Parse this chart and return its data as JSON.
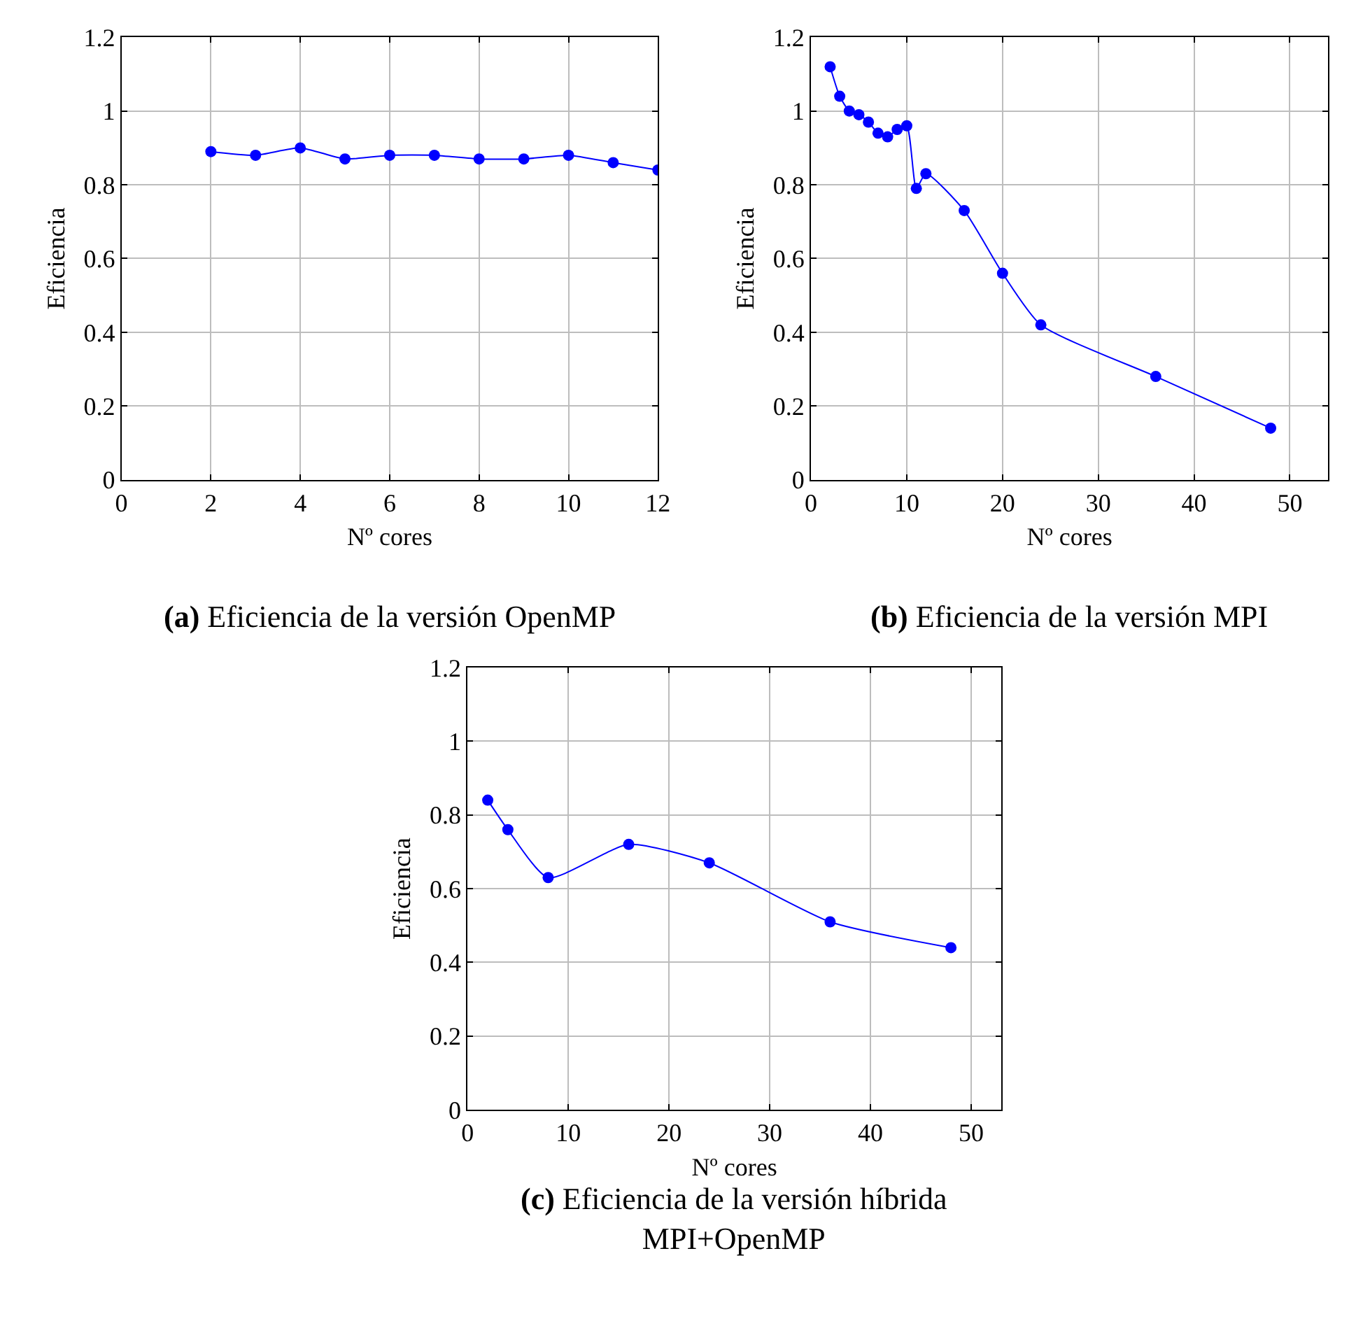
{
  "chart_data": [
    {
      "type": "line",
      "xlabel": "Nº cores",
      "ylabel": "Eficiencia",
      "annotations": [
        "(a) Eficiencia de la versión OpenMP"
      ],
      "x": [
        2,
        3,
        4,
        5,
        6,
        7,
        8,
        9,
        10,
        11,
        12
      ],
      "series": [
        {
          "color": "#0000ff",
          "values": [
            0.89,
            0.88,
            0.9,
            0.87,
            0.88,
            0.88,
            0.87,
            0.87,
            0.88,
            0.86,
            0.84
          ]
        }
      ],
      "xlim": [
        0,
        12
      ],
      "xticks": [
        0,
        2,
        4,
        6,
        8,
        10,
        12
      ],
      "ylim": [
        0,
        1.2
      ],
      "yticks": [
        0,
        0.2,
        0.4,
        0.6,
        0.8,
        1,
        1.2
      ],
      "grid": true,
      "marker": "circle",
      "line_style": "solid"
    },
    {
      "type": "line",
      "xlabel": "Nº cores",
      "ylabel": "Eficiencia",
      "annotations": [
        "(b) Eficiencia de la versión MPI"
      ],
      "x": [
        2,
        3,
        4,
        5,
        6,
        7,
        8,
        9,
        10,
        11,
        12,
        16,
        20,
        24,
        36,
        48
      ],
      "series": [
        {
          "color": "#0000ff",
          "values": [
            1.12,
            1.04,
            1.0,
            0.99,
            0.97,
            0.94,
            0.93,
            0.95,
            0.96,
            0.79,
            0.83,
            0.73,
            0.56,
            0.42,
            0.28,
            0.14
          ]
        }
      ],
      "xlim": [
        0,
        54
      ],
      "xticks": [
        0,
        10,
        20,
        30,
        40,
        50
      ],
      "ylim": [
        0,
        1.2
      ],
      "yticks": [
        0,
        0.2,
        0.4,
        0.6,
        0.8,
        1,
        1.2
      ],
      "grid": true,
      "marker": "circle",
      "line_style": "solid"
    },
    {
      "type": "line",
      "xlabel": "Nº cores",
      "ylabel": "Eficiencia",
      "annotations": [
        "(c) Eficiencia de la versión híbrida\nMPI+OpenMP"
      ],
      "x": [
        2,
        4,
        8,
        16,
        24,
        36,
        48
      ],
      "series": [
        {
          "color": "#0000ff",
          "values": [
            0.84,
            0.76,
            0.63,
            0.72,
            0.67,
            0.51,
            0.44
          ]
        }
      ],
      "xlim": [
        0,
        53
      ],
      "xticks": [
        0,
        10,
        20,
        30,
        40,
        50
      ],
      "ylim": [
        0,
        1.2
      ],
      "yticks": [
        0,
        0.2,
        0.4,
        0.6,
        0.8,
        1,
        1.2
      ],
      "grid": true,
      "marker": "circle",
      "line_style": "solid"
    }
  ]
}
